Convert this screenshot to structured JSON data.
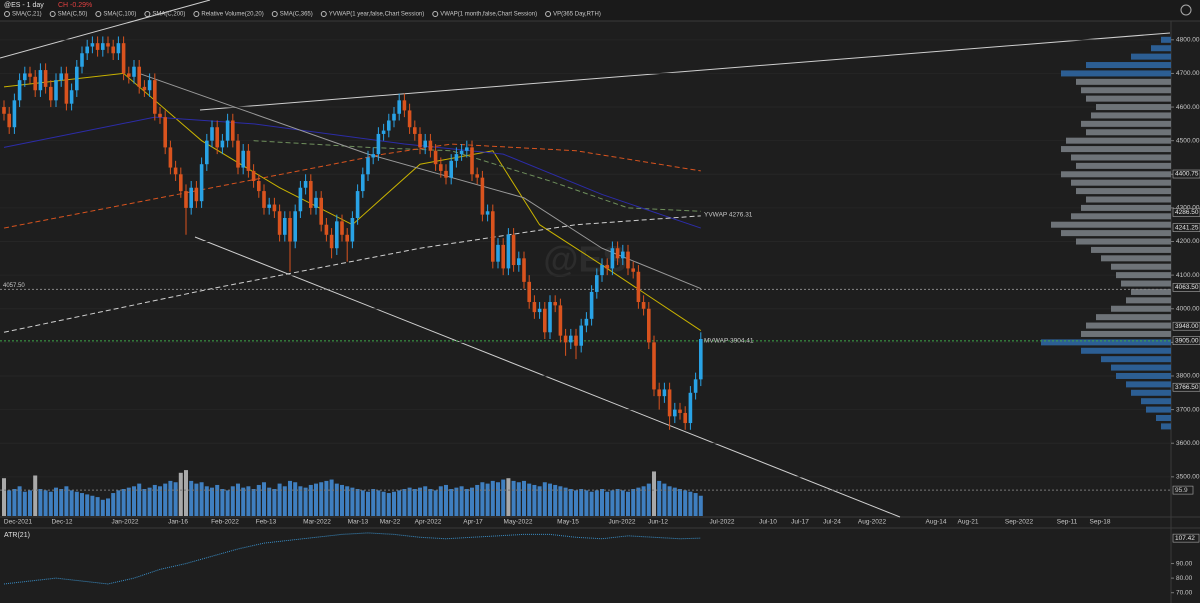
{
  "chart_data": {
    "type": "candlestick",
    "title": "@ES - 1 day",
    "change": "CH -0.29%",
    "indicators": [
      "SMA(C,21)",
      "SMA(C,50)",
      "SMA(C,100)",
      "SMA(C,200)",
      "Relative Volume(20,20)",
      "SMA(C,365)",
      "YVWAP(1 year,false,Chart Session)",
      "VWAP(1 month,false,Chart Session)",
      "VP(365 Day,RTH)"
    ],
    "watermark": "@ES",
    "up_color": "#29a3e6",
    "down_color": "#d9531e",
    "ylim": [
      3440,
      4853
    ],
    "yticks": [
      {
        "value": 3500,
        "label": "3500.00"
      },
      {
        "value": 3600,
        "label": "3600.00"
      },
      {
        "value": 3700,
        "label": "3700.00"
      },
      {
        "value": 3800,
        "label": "3800.00"
      },
      {
        "value": 3900,
        "label": "3900.00"
      },
      {
        "value": 4000,
        "label": "4000.00"
      },
      {
        "value": 4100,
        "label": "4100.00"
      },
      {
        "value": 4200,
        "label": "4200.00"
      },
      {
        "value": 4300,
        "label": "4300.00"
      },
      {
        "value": 4400,
        "label": "4400.00"
      },
      {
        "value": 4500,
        "label": "4500.00"
      },
      {
        "value": 4600,
        "label": "4600.00"
      },
      {
        "value": 4700,
        "label": "4700.00"
      },
      {
        "value": 4800,
        "label": "4800.00"
      }
    ],
    "price_markers": [
      {
        "value": 4400.75,
        "label": "4400.75"
      },
      {
        "value": 4286.5,
        "label": "4286.50"
      },
      {
        "value": 4241.25,
        "label": "4241.25"
      },
      {
        "value": 4063.5,
        "label": "4063.50"
      },
      {
        "value": 3948,
        "label": "3948.00"
      },
      {
        "value": 3905,
        "label": "3905.00"
      },
      {
        "value": 3766.5,
        "label": "3766.50"
      }
    ],
    "level": {
      "value": 4057.5,
      "label": "4057.50"
    },
    "mvwap": 3904.41,
    "mvwap_label": "MVWAP 3904.41",
    "yvwap_label": "YVWAP 4276.31",
    "x_labels": [
      "Dec-2021",
      "Dec-12",
      "Jan-2022",
      "Jan-16",
      "Feb-2022",
      "Feb-13",
      "Mar-2022",
      "Mar-13",
      "Mar-22",
      "Apr-2022",
      "Apr-17",
      "May-2022",
      "May-15",
      "Jun-2022",
      "Jun-12",
      "Jul-2022",
      "Jul-10",
      "Jul-17",
      "Jul-24",
      "Aug-2022",
      "Aug-14",
      "Aug-21",
      "Sep-2022",
      "Sep-11",
      "Sep-18"
    ],
    "open": [
      4600,
      4580,
      4540,
      4620,
      4680,
      4700,
      4690,
      4650,
      4710,
      4660,
      4620,
      4680,
      4700,
      4610,
      4650,
      4720,
      4760,
      4780,
      4790,
      4770,
      4790,
      4780,
      4760,
      4790,
      4700,
      4690,
      4720,
      4660,
      4650,
      4680,
      4580,
      4570,
      4480,
      4420,
      4400,
      4350,
      4300,
      4360,
      4320,
      4430,
      4500,
      4540,
      4480,
      4500,
      4560,
      4500,
      4420,
      4470,
      4410,
      4380,
      4350,
      4300,
      4310,
      4290,
      4220,
      4270,
      4200,
      4290,
      4360,
      4380,
      4300,
      4330,
      4250,
      4220,
      4180,
      4260,
      4220,
      4200,
      4270,
      4350,
      4400,
      4450,
      4460,
      4520,
      4530,
      4560,
      4580,
      4620,
      4590,
      4540,
      4520,
      4480,
      4500,
      4470,
      4430,
      4410,
      4390,
      4440,
      4460,
      4470,
      4480,
      4400,
      4390,
      4280,
      4290,
      4140,
      4190,
      4120,
      4220,
      4130,
      4150,
      4080,
      4020,
      3990,
      4000,
      3930,
      4020,
      4010,
      3920,
      3900,
      3920,
      3890,
      3950,
      3970,
      4050,
      4100,
      4130,
      4120,
      4180,
      4150,
      4170,
      4120,
      4110,
      4020,
      4000,
      3900,
      3760,
      3740,
      3760,
      3680,
      3700,
      3690,
      3660,
      3750,
      3790
    ],
    "high": [
      4620,
      4600,
      4640,
      4700,
      4720,
      4720,
      4710,
      4730,
      4730,
      4680,
      4700,
      4720,
      4720,
      4670,
      4740,
      4780,
      4800,
      4810,
      4810,
      4810,
      4810,
      4800,
      4810,
      4810,
      4720,
      4740,
      4740,
      4680,
      4700,
      4700,
      4600,
      4590,
      4500,
      4440,
      4420,
      4370,
      4380,
      4380,
      4450,
      4520,
      4560,
      4560,
      4520,
      4580,
      4580,
      4520,
      4490,
      4490,
      4430,
      4400,
      4370,
      4330,
      4330,
      4310,
      4290,
      4290,
      4310,
      4380,
      4400,
      4400,
      4350,
      4350,
      4270,
      4240,
      4280,
      4280,
      4240,
      4290,
      4370,
      4420,
      4470,
      4480,
      4540,
      4550,
      4580,
      4600,
      4640,
      4640,
      4610,
      4560,
      4540,
      4520,
      4520,
      4490,
      4450,
      4430,
      4460,
      4480,
      4490,
      4500,
      4500,
      4420,
      4410,
      4310,
      4310,
      4210,
      4210,
      4240,
      4240,
      4170,
      4170,
      4100,
      4040,
      4020,
      4020,
      4040,
      4040,
      4030,
      3940,
      3940,
      3940,
      3970,
      3990,
      4070,
      4120,
      4150,
      4150,
      4200,
      4200,
      4190,
      4190,
      4140,
      4130,
      4040,
      4020,
      3920,
      3780,
      3780,
      3780,
      3720,
      3720,
      3710,
      3770,
      3810,
      3930
    ],
    "low": [
      4560,
      4520,
      4520,
      4600,
      4660,
      4670,
      4630,
      4630,
      4640,
      4600,
      4600,
      4660,
      4590,
      4590,
      4630,
      4700,
      4740,
      4760,
      4750,
      4750,
      4760,
      4740,
      4740,
      4680,
      4670,
      4670,
      4640,
      4630,
      4630,
      4560,
      4550,
      4460,
      4400,
      4380,
      4330,
      4220,
      4280,
      4300,
      4300,
      4410,
      4480,
      4460,
      4460,
      4480,
      4480,
      4400,
      4400,
      4390,
      4360,
      4330,
      4280,
      4280,
      4270,
      4200,
      4200,
      4110,
      4180,
      4270,
      4340,
      4280,
      4280,
      4230,
      4200,
      4150,
      4160,
      4200,
      4140,
      4180,
      4250,
      4330,
      4380,
      4430,
      4440,
      4500,
      4510,
      4540,
      4560,
      4570,
      4520,
      4500,
      4460,
      4460,
      4450,
      4410,
      4390,
      4370,
      4370,
      4420,
      4440,
      4450,
      4380,
      4370,
      4260,
      4260,
      4120,
      4120,
      4100,
      4100,
      4110,
      4110,
      4060,
      4000,
      3970,
      3970,
      3910,
      3910,
      3990,
      3900,
      3860,
      3880,
      3850,
      3870,
      3930,
      3950,
      4030,
      4080,
      4100,
      4100,
      4130,
      4130,
      4100,
      4090,
      4000,
      3980,
      3880,
      3740,
      3700,
      3720,
      3640,
      3660,
      3670,
      3640,
      3640,
      3730,
      3770
    ],
    "close": [
      4580,
      4540,
      4620,
      4680,
      4700,
      4690,
      4650,
      4710,
      4660,
      4620,
      4680,
      4700,
      4610,
      4650,
      4720,
      4760,
      4780,
      4790,
      4770,
      4790,
      4780,
      4760,
      4790,
      4700,
      4690,
      4720,
      4660,
      4650,
      4680,
      4580,
      4570,
      4480,
      4420,
      4400,
      4350,
      4300,
      4360,
      4320,
      4430,
      4500,
      4540,
      4480,
      4500,
      4560,
      4500,
      4420,
      4470,
      4410,
      4380,
      4350,
      4300,
      4310,
      4290,
      4220,
      4270,
      4200,
      4290,
      4360,
      4380,
      4300,
      4330,
      4250,
      4220,
      4180,
      4260,
      4220,
      4200,
      4270,
      4350,
      4400,
      4450,
      4460,
      4520,
      4530,
      4560,
      4580,
      4620,
      4590,
      4540,
      4520,
      4480,
      4500,
      4470,
      4430,
      4410,
      4390,
      4440,
      4460,
      4470,
      4480,
      4400,
      4390,
      4280,
      4290,
      4140,
      4190,
      4120,
      4220,
      4130,
      4150,
      4080,
      4020,
      3990,
      4000,
      3930,
      4020,
      4010,
      3920,
      3900,
      3920,
      3890,
      3950,
      3970,
      4050,
      4100,
      4130,
      4120,
      4180,
      4150,
      4170,
      4120,
      4110,
      4020,
      4000,
      3900,
      3760,
      3740,
      3760,
      3680,
      3700,
      3690,
      3660,
      3750,
      3790,
      3910
    ],
    "overlays": [
      {
        "color": "#c9b300",
        "dash": false,
        "x": [
          0,
          23,
          38,
          53,
          67,
          80,
          94,
          103,
          115,
          134
        ],
        "values": [
          4660,
          4700,
          4500,
          4360,
          4250,
          4430,
          4470,
          4250,
          4130,
          3935
        ]
      },
      {
        "color": "#6f8f5c",
        "dash": true,
        "x": [
          48,
          70,
          86,
          105,
          120,
          134
        ],
        "values": [
          4500,
          4480,
          4470,
          4380,
          4300,
          4290
        ]
      },
      {
        "color": "#2c2ca8",
        "dash": false,
        "x": [
          0,
          29,
          48,
          77,
          96,
          115,
          134
        ],
        "values": [
          4480,
          4570,
          4550,
          4490,
          4460,
          4340,
          4240
        ]
      },
      {
        "color": "#d9541e",
        "dash": true,
        "x": [
          0,
          30,
          60,
          73,
          86,
          110,
          134
        ],
        "values": [
          4240,
          4330,
          4420,
          4460,
          4490,
          4470,
          4410
        ]
      },
      {
        "color": "#9a9a9a",
        "dash": false,
        "x": [
          26,
          70,
          100,
          115,
          134
        ],
        "values": [
          4700,
          4460,
          4330,
          4180,
          4060
        ]
      },
      {
        "color": "#d0d0d0",
        "dash": true,
        "x": [
          0,
          40,
          80,
          110,
          134
        ],
        "values": [
          3930,
          4060,
          4180,
          4250,
          4276.31
        ]
      }
    ],
    "volume": [
      140,
      95,
      100,
      110,
      90,
      95,
      150,
      100,
      95,
      90,
      105,
      100,
      110,
      95,
      90,
      85,
      80,
      75,
      70,
      60,
      65,
      85,
      95,
      100,
      105,
      110,
      120,
      100,
      105,
      115,
      110,
      120,
      130,
      125,
      160,
      170,
      130,
      120,
      125,
      110,
      105,
      115,
      100,
      95,
      110,
      120,
      105,
      110,
      100,
      115,
      125,
      105,
      100,
      120,
      110,
      130,
      125,
      110,
      105,
      115,
      120,
      125,
      130,
      135,
      120,
      115,
      110,
      105,
      100,
      95,
      90,
      100,
      95,
      90,
      85,
      90,
      95,
      100,
      105,
      100,
      105,
      110,
      100,
      95,
      110,
      115,
      100,
      105,
      110,
      100,
      105,
      115,
      125,
      120,
      130,
      125,
      135,
      140,
      130,
      125,
      130,
      120,
      115,
      110,
      125,
      120,
      115,
      110,
      105,
      100,
      95,
      100,
      95,
      90,
      95,
      100,
      90,
      95,
      100,
      95,
      90,
      100,
      105,
      110,
      120,
      165,
      130,
      120,
      110,
      105,
      100,
      95,
      90,
      85,
      75
    ],
    "volume_ylim": [
      0,
      200
    ],
    "volume_marker": 95.9,
    "volume_profile": {
      "prices": [
        3650,
        3675,
        3700,
        3725,
        3750,
        3775,
        3800,
        3825,
        3850,
        3875,
        3900,
        3925,
        3950,
        3975,
        4000,
        4025,
        4050,
        4075,
        4100,
        4125,
        4150,
        4175,
        4200,
        4225,
        4250,
        4275,
        4300,
        4325,
        4350,
        4375,
        4400,
        4425,
        4450,
        4475,
        4500,
        4525,
        4550,
        4575,
        4600,
        4625,
        4650,
        4675,
        4700,
        4725,
        4750,
        4775,
        4800
      ],
      "values": [
        10,
        15,
        25,
        30,
        40,
        45,
        55,
        60,
        70,
        90,
        130,
        90,
        85,
        75,
        60,
        45,
        40,
        50,
        55,
        60,
        70,
        80,
        95,
        110,
        120,
        100,
        90,
        85,
        95,
        100,
        110,
        95,
        100,
        110,
        105,
        85,
        90,
        80,
        75,
        85,
        90,
        95,
        110,
        85,
        40,
        20,
        10
      ]
    },
    "atr": {
      "title": "ATR(21)",
      "color": "#3a8fc8",
      "x": [
        0,
        5,
        10,
        15,
        20,
        25,
        30,
        35,
        40,
        45,
        50,
        55,
        60,
        65,
        70,
        75,
        80,
        85,
        90,
        95,
        100,
        105,
        110,
        115,
        120,
        125,
        130,
        134
      ],
      "values": [
        76,
        78,
        80,
        78,
        76,
        80,
        86,
        90,
        95,
        100,
        104,
        106,
        108,
        110,
        111,
        110,
        108,
        107,
        108,
        109,
        110,
        110,
        108,
        107,
        109,
        108,
        107,
        107.42
      ],
      "ylim": [
        65,
        113
      ],
      "yticks": [
        {
          "value": 70,
          "label": "70.00"
        },
        {
          "value": 80,
          "label": "80.00"
        },
        {
          "value": 90,
          "label": "90.00"
        }
      ]
    }
  }
}
